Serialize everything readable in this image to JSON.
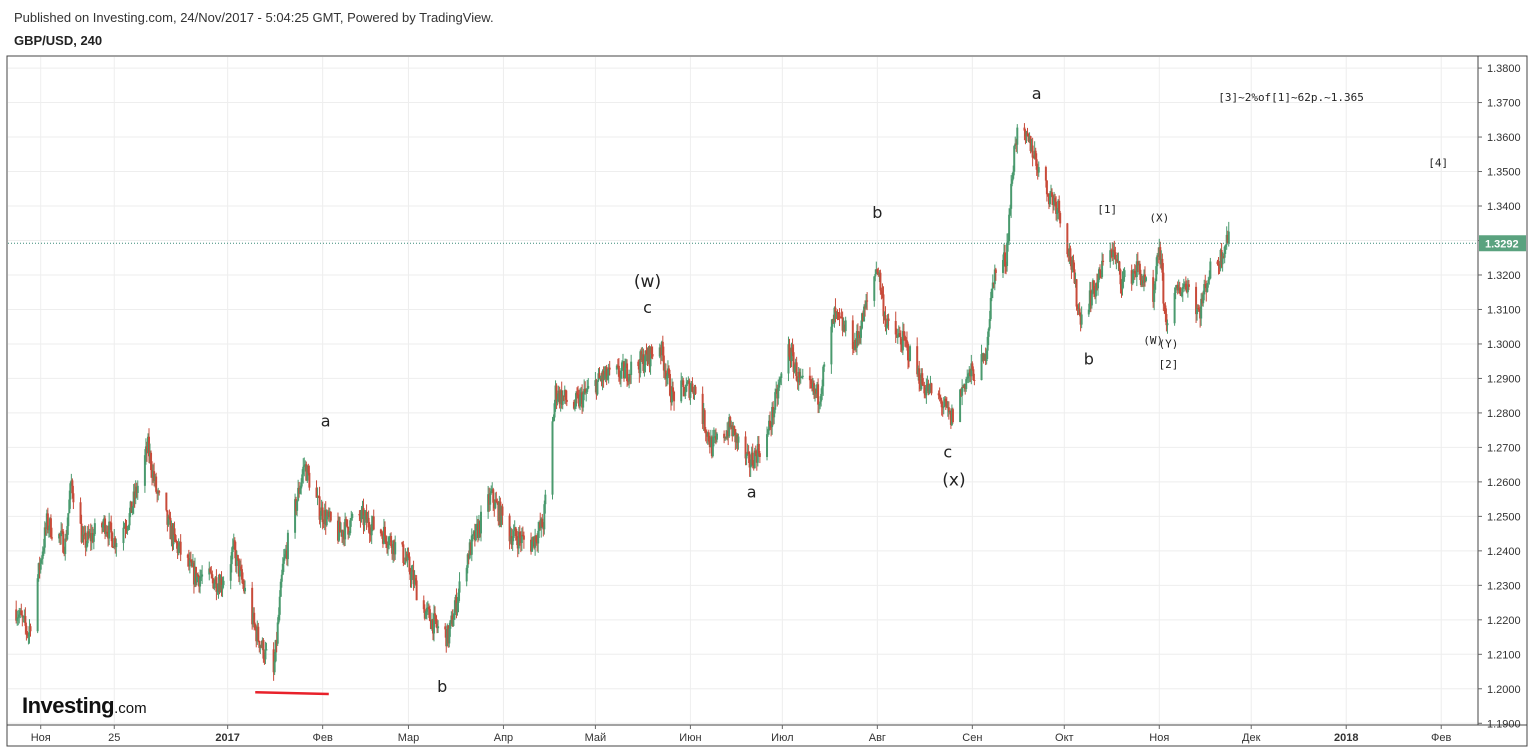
{
  "header": {
    "published": "Published on Investing.com, 24/Nov/2017 - 5:04:25 GMT, Powered by TradingView.",
    "symbol": "GBP/USD, 240"
  },
  "logo": {
    "main": "Investing",
    "suffix": ".com"
  },
  "colors": {
    "up": "#4a9a6e",
    "down": "#c84b3a",
    "price_line": "#3a8a78",
    "support": "#e8212a",
    "price_label_bg": "#5aa27f"
  },
  "chart_data": {
    "type": "candlestick",
    "ylim": [
      1.1895,
      1.3835
    ],
    "y_ticks": [
      "1.1900",
      "1.2000",
      "1.2100",
      "1.2200",
      "1.2300",
      "1.2400",
      "1.2500",
      "1.2600",
      "1.2700",
      "1.2800",
      "1.2900",
      "1.3000",
      "1.3100",
      "1.3200",
      "1.3300",
      "1.3400",
      "1.3500",
      "1.3600",
      "1.3700",
      "1.3800"
    ],
    "x_labels": [
      {
        "label": "Ноя",
        "date": "2016-11-01",
        "bold": false
      },
      {
        "label": "25",
        "date": "2016-11-25",
        "bold": false
      },
      {
        "label": "2017",
        "date": "2017-01-01",
        "bold": true
      },
      {
        "label": "Фев",
        "date": "2017-02-01",
        "bold": false
      },
      {
        "label": "Мар",
        "date": "2017-03-01",
        "bold": false
      },
      {
        "label": "Апр",
        "date": "2017-04-01",
        "bold": false
      },
      {
        "label": "Май",
        "date": "2017-05-01",
        "bold": false
      },
      {
        "label": "Июн",
        "date": "2017-06-01",
        "bold": false
      },
      {
        "label": "Июл",
        "date": "2017-07-01",
        "bold": false
      },
      {
        "label": "Авг",
        "date": "2017-08-01",
        "bold": false
      },
      {
        "label": "Сен",
        "date": "2017-09-01",
        "bold": false
      },
      {
        "label": "Окт",
        "date": "2017-10-01",
        "bold": false
      },
      {
        "label": "Ноя",
        "date": "2017-11-01",
        "bold": false
      },
      {
        "label": "Дек",
        "date": "2017-12-01",
        "bold": false
      },
      {
        "label": "2018",
        "date": "2018-01-01",
        "bold": true
      },
      {
        "label": "Фев",
        "date": "2018-02-01",
        "bold": false
      }
    ],
    "last_price": 1.3292,
    "last_price_label": "1.3292",
    "price_path": [
      [
        "2016-10-24",
        1.223
      ],
      [
        "2016-10-28",
        1.216
      ],
      [
        "2016-11-03",
        1.248
      ],
      [
        "2016-11-09",
        1.242
      ],
      [
        "2016-11-11",
        1.26
      ],
      [
        "2016-11-15",
        1.242
      ],
      [
        "2016-11-22",
        1.248
      ],
      [
        "2016-11-25",
        1.243
      ],
      [
        "2016-11-30",
        1.25
      ],
      [
        "2016-12-06",
        1.27
      ],
      [
        "2016-12-09",
        1.256
      ],
      [
        "2016-12-15",
        1.242
      ],
      [
        "2016-12-21",
        1.233
      ],
      [
        "2016-12-30",
        1.231
      ],
      [
        "2017-01-03",
        1.24
      ],
      [
        "2017-01-10",
        1.217
      ],
      [
        "2017-01-16",
        1.204
      ],
      [
        "2017-01-19",
        1.235
      ],
      [
        "2017-01-26",
        1.265
      ],
      [
        "2017-01-31",
        1.252
      ],
      [
        "2017-02-06",
        1.245
      ],
      [
        "2017-02-13",
        1.25
      ],
      [
        "2017-02-21",
        1.245
      ],
      [
        "2017-02-28",
        1.238
      ],
      [
        "2017-03-06",
        1.223
      ],
      [
        "2017-03-10",
        1.218
      ],
      [
        "2017-03-14",
        1.215
      ],
      [
        "2017-03-20",
        1.238
      ],
      [
        "2017-03-28",
        1.256
      ],
      [
        "2017-04-03",
        1.245
      ],
      [
        "2017-04-10",
        1.242
      ],
      [
        "2017-04-14",
        1.248
      ],
      [
        "2017-04-18",
        1.286
      ],
      [
        "2017-04-24",
        1.282
      ],
      [
        "2017-05-03",
        1.29
      ],
      [
        "2017-05-11",
        1.292
      ],
      [
        "2017-05-18",
        1.296
      ],
      [
        "2017-05-22",
        1.3
      ],
      [
        "2017-05-26",
        1.285
      ],
      [
        "2017-06-02",
        1.288
      ],
      [
        "2017-06-08",
        1.27
      ],
      [
        "2017-06-14",
        1.276
      ],
      [
        "2017-06-20",
        1.265
      ],
      [
        "2017-06-26",
        1.273
      ],
      [
        "2017-07-03",
        1.299
      ],
      [
        "2017-07-07",
        1.288
      ],
      [
        "2017-07-13",
        1.285
      ],
      [
        "2017-07-18",
        1.308
      ],
      [
        "2017-07-25",
        1.3
      ],
      [
        "2017-08-01",
        1.323
      ],
      [
        "2017-08-04",
        1.305
      ],
      [
        "2017-08-10",
        1.3
      ],
      [
        "2017-08-16",
        1.288
      ],
      [
        "2017-08-22",
        1.283
      ],
      [
        "2017-08-25",
        1.278
      ],
      [
        "2017-08-30",
        1.29
      ],
      [
        "2017-09-05",
        1.295
      ],
      [
        "2017-09-08",
        1.32
      ],
      [
        "2017-09-12",
        1.325
      ],
      [
        "2017-09-15",
        1.36
      ],
      [
        "2017-09-20",
        1.358
      ],
      [
        "2017-09-25",
        1.345
      ],
      [
        "2017-09-29",
        1.34
      ],
      [
        "2017-10-03",
        1.325
      ],
      [
        "2017-10-06",
        1.308
      ],
      [
        "2017-10-12",
        1.318
      ],
      [
        "2017-10-16",
        1.329
      ],
      [
        "2017-10-20",
        1.318
      ],
      [
        "2017-10-25",
        1.322
      ],
      [
        "2017-10-30",
        1.311
      ],
      [
        "2017-11-01",
        1.329
      ],
      [
        "2017-11-03",
        1.307
      ],
      [
        "2017-11-07",
        1.315
      ],
      [
        "2017-11-10",
        1.318
      ],
      [
        "2017-11-14",
        1.309
      ],
      [
        "2017-11-17",
        1.32
      ],
      [
        "2017-11-21",
        1.325
      ],
      [
        "2017-11-23",
        1.331
      ],
      [
        "2017-11-24",
        1.3292
      ]
    ],
    "support_line": [
      [
        "2017-01-10",
        1.199
      ],
      [
        "2017-02-03",
        1.1985
      ]
    ],
    "annotations": [
      {
        "text": "a",
        "date": "2017-02-02",
        "price": 1.276,
        "size": 16
      },
      {
        "text": "b",
        "date": "2017-03-12",
        "price": 1.199,
        "size": 16
      },
      {
        "text": "(w)",
        "date": "2017-05-18",
        "price": 1.3165,
        "size": 17
      },
      {
        "text": "c",
        "date": "2017-05-18",
        "price": 1.309,
        "size": 16
      },
      {
        "text": "a",
        "date": "2017-06-21",
        "price": 1.2555,
        "size": 16
      },
      {
        "text": "b",
        "date": "2017-08-01",
        "price": 1.3365,
        "size": 16
      },
      {
        "text": "c",
        "date": "2017-08-24",
        "price": 1.267,
        "size": 16
      },
      {
        "text": "(x)",
        "date": "2017-08-26",
        "price": 1.259,
        "size": 17
      },
      {
        "text": "a",
        "date": "2017-09-22",
        "price": 1.371,
        "size": 16
      },
      {
        "text": "b",
        "date": "2017-10-09",
        "price": 1.294,
        "size": 16
      },
      {
        "text": "[1]",
        "date": "2017-10-15",
        "price": 1.338,
        "size": 11
      },
      {
        "text": "(X)",
        "date": "2017-11-01",
        "price": 1.3355,
        "size": 11
      },
      {
        "text": "(W)",
        "date": "2017-10-30",
        "price": 1.3,
        "size": 11
      },
      {
        "text": "(Y)",
        "date": "2017-11-04",
        "price": 1.299,
        "size": 11
      },
      {
        "text": "[2]",
        "date": "2017-11-04",
        "price": 1.293,
        "size": 11
      },
      {
        "text": "[3]~2%of[1]~62p.~1.365",
        "date": "2017-12-14",
        "price": 1.3705,
        "size": 11
      },
      {
        "text": "[4]",
        "date": "2018-01-31",
        "price": 1.3515,
        "size": 11
      }
    ]
  }
}
